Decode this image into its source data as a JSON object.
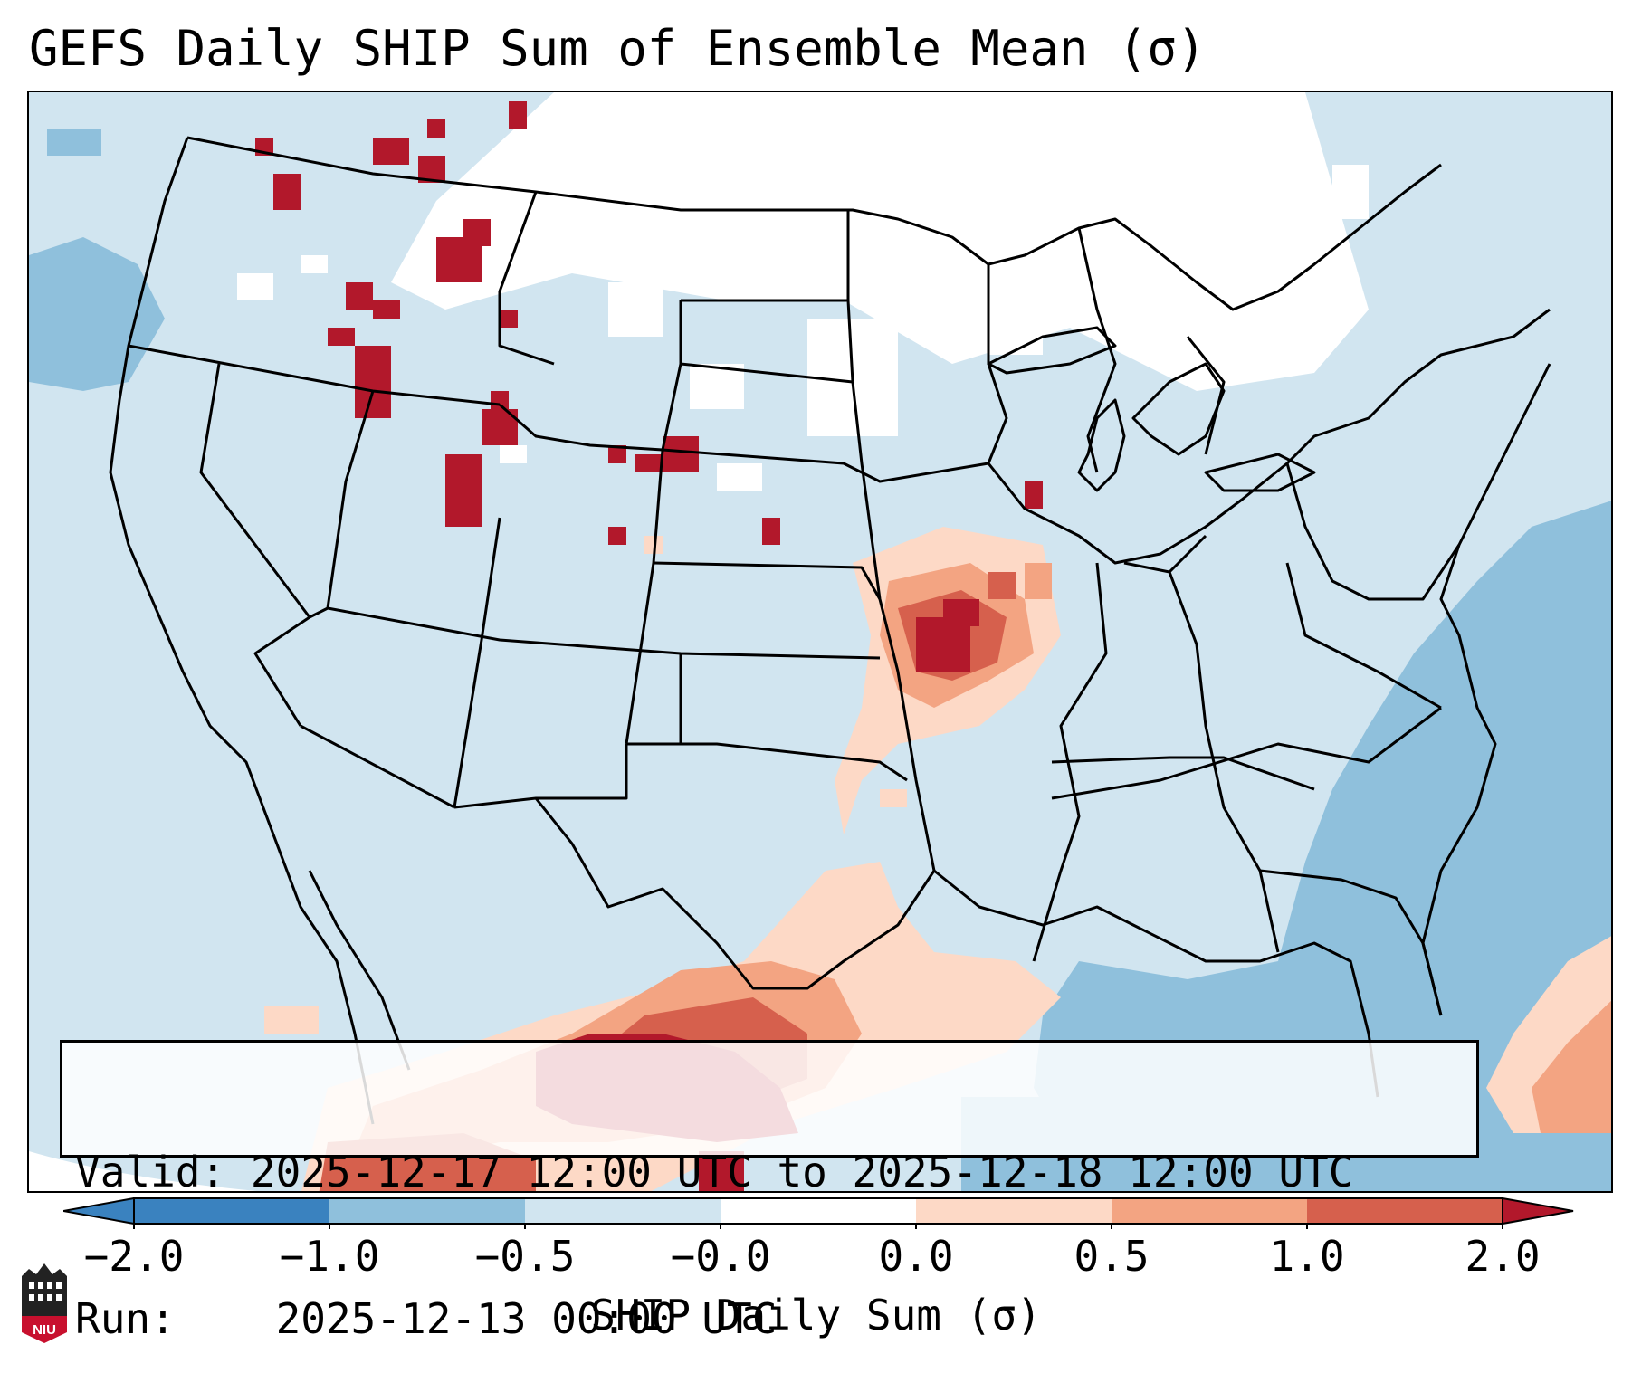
{
  "title": "GEFS Daily SHIP Sum of Ensemble Mean (σ)",
  "info": {
    "valid_label": "Valid:",
    "valid_value": "2025-12-17 12:00 UTC to 2025-12-18 12:00 UTC",
    "run_label": "Run:",
    "run_value": "2025-12-13 00:00 UTC"
  },
  "colorbar": {
    "label": "SHIP Daily Sum (σ)",
    "ticks": [
      "−2.0",
      "−1.0",
      "−0.5",
      "−0.0",
      "0.0",
      "0.5",
      "1.0",
      "2.0"
    ],
    "bins": [
      {
        "range": "<−2.0",
        "color": "#3a82bf"
      },
      {
        "range": "−2.0 to −1.0",
        "color": "#3a82bf"
      },
      {
        "range": "−1.0 to −0.5",
        "color": "#8fc0dc"
      },
      {
        "range": "−0.5 to −0.0",
        "color": "#d1e5f0"
      },
      {
        "range": "−0.0 to 0.0",
        "color": "#ffffff"
      },
      {
        "range": "0.0 to 0.5",
        "color": "#fdd9c6"
      },
      {
        "range": "0.5 to 1.0",
        "color": "#f3a482"
      },
      {
        "range": "1.0 to 2.0",
        "color": "#d6604d"
      },
      {
        "range": ">2.0",
        "color": "#b2182b"
      }
    ]
  },
  "colors": {
    "ocean_negative": "#8fc0dc",
    "land_slightly_negative": "#d1e5f0",
    "neutral": "#ffffff",
    "light_positive": "#fdd9c6",
    "moderate_positive": "#f3a482",
    "strong_positive": "#d6604d",
    "extreme_positive": "#b2182b",
    "boundaries": "#000000"
  },
  "logo_text": "NIU"
}
